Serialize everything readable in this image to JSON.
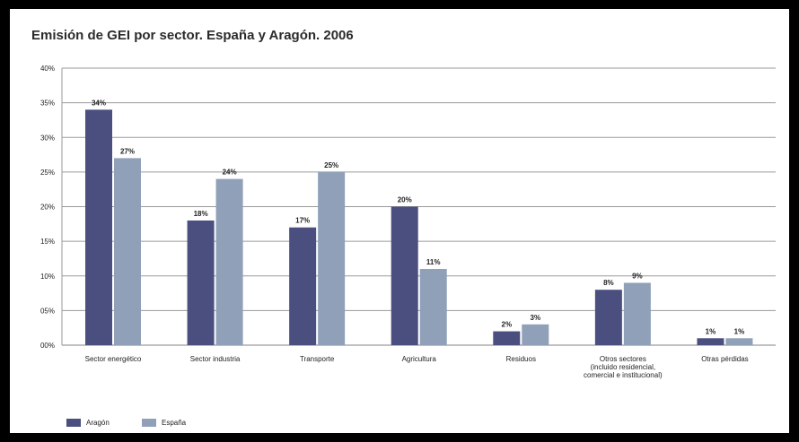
{
  "colors": {
    "aragon": "#4a4f80",
    "espana": "#8fa0b8",
    "grid": "#9a9a9a",
    "text": "#222222"
  },
  "chart_data": {
    "type": "bar",
    "title": "Emisión de GEI por sector. España y Aragón. 2006",
    "xlabel": "",
    "ylabel": "",
    "ylim": [
      0,
      40
    ],
    "yticks": [
      0,
      5,
      10,
      15,
      20,
      25,
      30,
      35,
      40
    ],
    "ytick_labels": [
      "00%",
      "05%",
      "10%",
      "15%",
      "20%",
      "25%",
      "30%",
      "35%",
      "40%"
    ],
    "grid": true,
    "legend_position": "bottom-left",
    "categories": [
      "Sector energético",
      "Sector industria",
      "Transporte",
      "Agricultura",
      "Residuos",
      "Otros sectores (incluido residencial, comercial e institucional)",
      "Otras pérdidas"
    ],
    "series": [
      {
        "name": "Aragón",
        "values": [
          34,
          18,
          17,
          20,
          2,
          8,
          1
        ],
        "labels": [
          "34%",
          "18%",
          "17%",
          "20%",
          "2%",
          "8%",
          "1%"
        ]
      },
      {
        "name": "España",
        "values": [
          27,
          24,
          25,
          11,
          3,
          9,
          1
        ],
        "labels": [
          "27%",
          "24%",
          "25%",
          "11%",
          "3%",
          "9%",
          "1%"
        ]
      }
    ]
  }
}
